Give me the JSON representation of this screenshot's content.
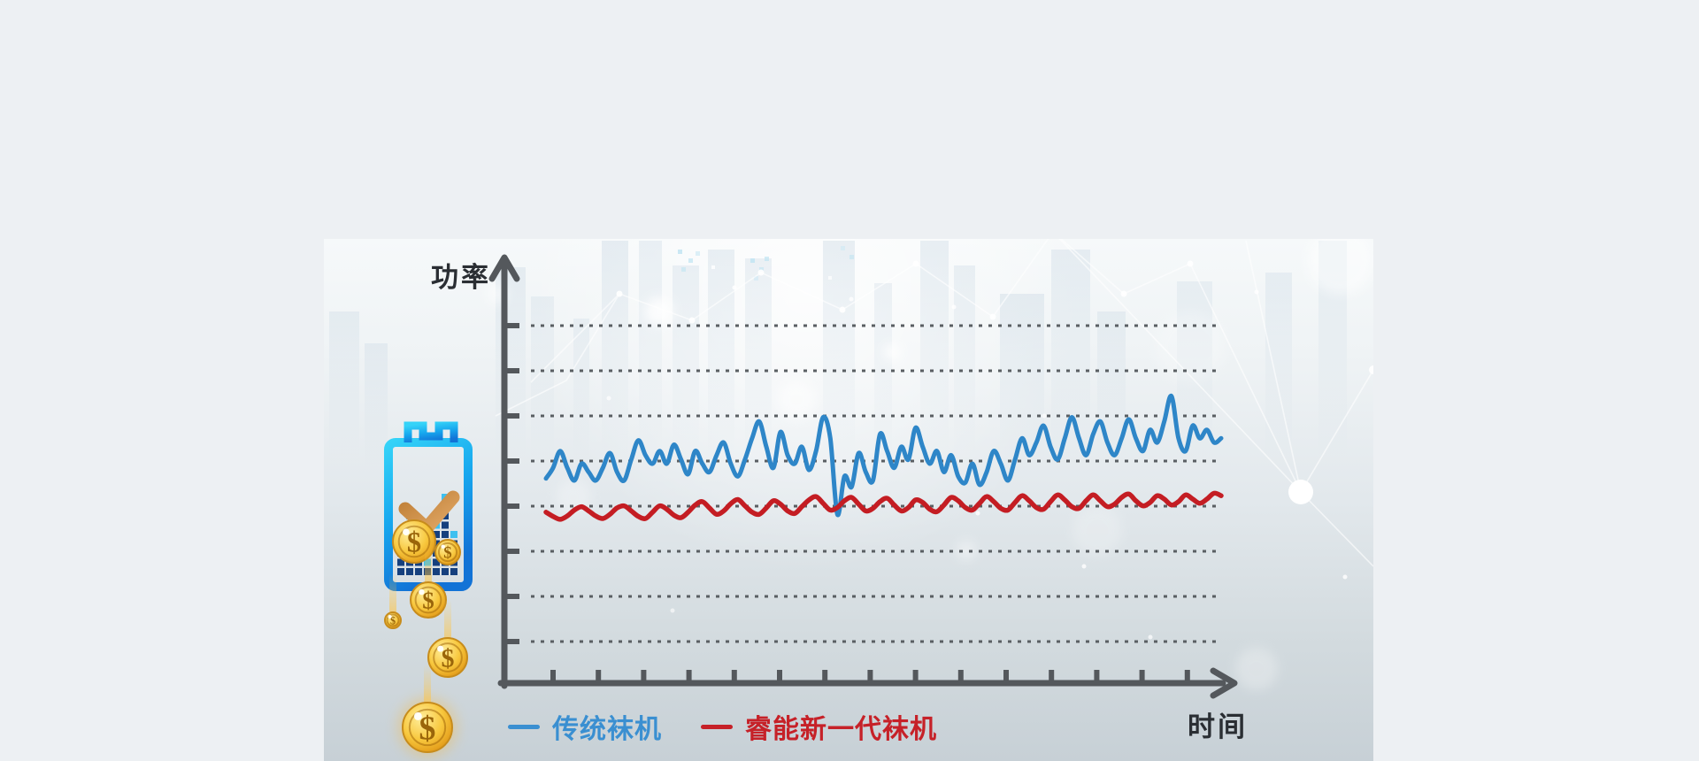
{
  "panel": {
    "y_axis_label": "功率",
    "x_axis_label": "时间"
  },
  "legend": {
    "items": [
      {
        "label": "传统袜机",
        "color": "#3a8fd1"
      },
      {
        "label": "睿能新一代袜机",
        "color": "#c62128"
      }
    ]
  },
  "icons": {
    "battery": "battery-savings-icon",
    "checkmark": "checkmark-icon",
    "coins": "dollar-coin-icon",
    "equalizer": "equalizer-pixels-icon",
    "y_arrow": "y-axis-arrow-icon",
    "x_arrow": "x-axis-arrow-icon"
  },
  "colors": {
    "axis": "#54585c",
    "gridline": "#5a5f63",
    "panel_top": "#f6f9fa",
    "panel_bottom": "#c7d0d6",
    "outer_background": "#edf0f3",
    "battery_cyan": "#19c5f6",
    "battery_blue": "#1273d6",
    "coin_gold": "#f6c944",
    "check_bronze": "#cf9448"
  },
  "chart_data": {
    "type": "line",
    "xlabel": "时间",
    "ylabel": "功率",
    "axes_numeric_labels": "none (qualitative axes, arrow-tipped)",
    "gridlines": {
      "horizontal_count": 8,
      "style": "dashed",
      "vertical": false
    },
    "x_tick_count": 15,
    "legend_position": "bottom-left",
    "ylim": [
      0,
      100
    ],
    "x": "96 evenly spaced samples over unlabeled time span",
    "series": [
      {
        "name": "传统袜机",
        "color": "#2e86c8",
        "description": "higher, strongly fluctuating power with sharp dip at ~43% of span and rising peaks toward the right",
        "values": [
          48.5,
          51,
          55,
          51,
          48,
          52,
          50,
          48,
          51,
          54.5,
          50,
          48,
          53,
          57.5,
          54,
          52,
          55,
          52,
          56.5,
          53,
          49.5,
          55,
          52,
          50,
          54,
          57,
          52,
          49,
          53,
          58,
          62,
          56,
          51,
          59.5,
          54,
          52,
          56,
          50.5,
          55,
          63,
          58,
          40,
          49,
          46.5,
          54.5,
          50,
          48,
          59,
          55,
          51,
          56,
          53,
          60.5,
          56,
          52,
          55,
          50,
          54,
          49,
          47.5,
          52,
          47,
          50,
          55,
          52,
          48,
          53,
          58,
          54,
          57,
          61,
          56,
          53,
          58,
          63,
          58,
          54,
          59,
          62,
          57,
          54,
          58,
          62.5,
          58,
          55,
          60,
          57,
          62,
          68,
          58,
          55,
          61,
          58,
          60,
          57,
          58
        ]
      },
      {
        "name": "睿能新一代袜机",
        "color": "#c41d23",
        "description": "lower, gently rippling power, slightly rising, much more stable",
        "values": [
          40.5,
          39.5,
          38.8,
          39.6,
          41,
          41.8,
          40.8,
          39.6,
          39,
          40,
          41.5,
          42,
          40.8,
          39.5,
          39,
          40.5,
          42,
          41.2,
          39.8,
          39.2,
          40.5,
          42.2,
          43,
          41.5,
          40,
          40.8,
          42.5,
          43.5,
          42,
          40.5,
          40,
          41.5,
          43.2,
          42.4,
          40.8,
          40.2,
          41.8,
          43.4,
          44.2,
          42.6,
          41,
          41.6,
          43.2,
          44,
          42.4,
          40.8,
          41.4,
          43,
          43.8,
          42.2,
          40.8,
          41.6,
          43.4,
          42.8,
          41.2,
          40.6,
          42.2,
          44,
          43.2,
          41.6,
          41,
          42.6,
          44.2,
          43,
          41.4,
          41,
          42.8,
          44.4,
          43.2,
          41.6,
          41.2,
          43,
          44.6,
          43.4,
          41.8,
          41.4,
          43.2,
          44.6,
          43.2,
          41.8,
          42.4,
          44,
          44.8,
          43.2,
          42,
          42.8,
          44.4,
          43.6,
          42.2,
          43,
          44.6,
          43.6,
          42.6,
          43.6,
          45,
          44.4
        ]
      }
    ]
  }
}
